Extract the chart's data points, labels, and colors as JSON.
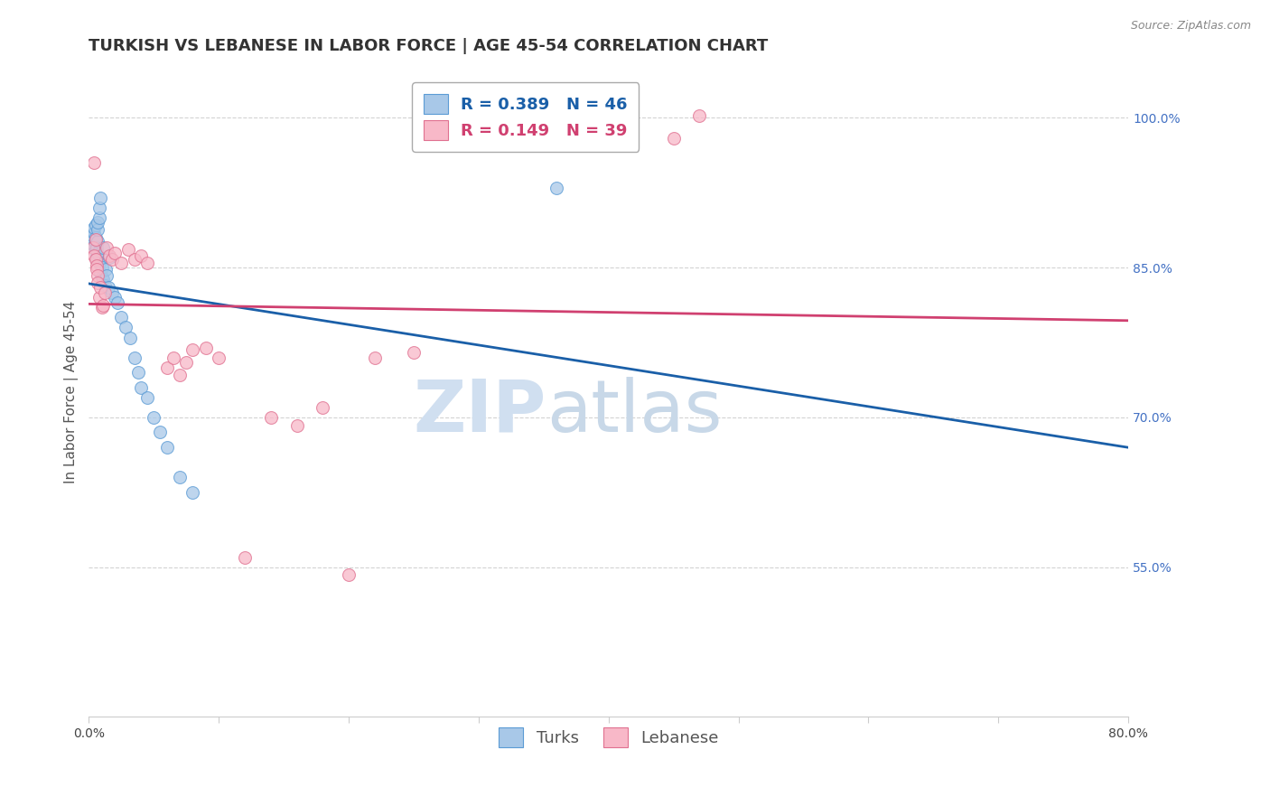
{
  "title": "TURKISH VS LEBANESE IN LABOR FORCE | AGE 45-54 CORRELATION CHART",
  "source": "Source: ZipAtlas.com",
  "ylabel": "In Labor Force | Age 45-54",
  "xlim": [
    0.0,
    0.8
  ],
  "ylim": [
    0.4,
    1.05
  ],
  "xtick_positions": [
    0.0,
    0.1,
    0.2,
    0.3,
    0.4,
    0.5,
    0.6,
    0.7,
    0.8
  ],
  "xticklabels": [
    "0.0%",
    "",
    "",
    "",
    "",
    "",
    "",
    "",
    "80.0%"
  ],
  "ytick_positions": [
    0.55,
    0.7,
    0.85,
    1.0
  ],
  "ytick_labels": [
    "55.0%",
    "70.0%",
    "85.0%",
    "100.0%"
  ],
  "ytick_color": "#4472c4",
  "grid_color": "#c8c8c8",
  "background_color": "#ffffff",
  "turks_fill_color": "#a8c8e8",
  "turks_edge_color": "#5b9bd5",
  "lebanese_fill_color": "#f8b8c8",
  "lebanese_edge_color": "#e07090",
  "legend_turks_R": "0.389",
  "legend_turks_N": "46",
  "legend_lebanese_R": "0.149",
  "legend_lebanese_N": "39",
  "watermark_zip_color": "#d0dff0",
  "watermark_atlas_color": "#c8d8e8",
  "turks_line_color": "#1a5fa8",
  "lebanese_line_color": "#d04070",
  "marker_size": 100,
  "title_fontsize": 13,
  "axis_label_fontsize": 11,
  "tick_fontsize": 10,
  "legend_fontsize": 13,
  "turks_x": [
    0.003,
    0.003,
    0.004,
    0.004,
    0.004,
    0.005,
    0.005,
    0.005,
    0.005,
    0.006,
    0.006,
    0.006,
    0.007,
    0.007,
    0.007,
    0.007,
    0.008,
    0.008,
    0.008,
    0.009,
    0.009,
    0.01,
    0.01,
    0.011,
    0.011,
    0.012,
    0.013,
    0.014,
    0.015,
    0.016,
    0.018,
    0.02,
    0.022,
    0.025,
    0.028,
    0.032,
    0.035,
    0.038,
    0.04,
    0.045,
    0.05,
    0.055,
    0.06,
    0.07,
    0.08,
    0.36
  ],
  "turks_y": [
    0.878,
    0.882,
    0.885,
    0.89,
    0.872,
    0.875,
    0.88,
    0.868,
    0.893,
    0.87,
    0.862,
    0.858,
    0.876,
    0.888,
    0.895,
    0.865,
    0.855,
    0.9,
    0.91,
    0.92,
    0.845,
    0.84,
    0.85,
    0.87,
    0.838,
    0.832,
    0.848,
    0.842,
    0.83,
    0.86,
    0.825,
    0.82,
    0.815,
    0.8,
    0.79,
    0.78,
    0.76,
    0.745,
    0.73,
    0.72,
    0.7,
    0.685,
    0.67,
    0.64,
    0.625,
    0.93
  ],
  "lebanese_x": [
    0.003,
    0.004,
    0.004,
    0.005,
    0.005,
    0.006,
    0.006,
    0.007,
    0.007,
    0.008,
    0.009,
    0.01,
    0.011,
    0.012,
    0.014,
    0.016,
    0.018,
    0.02,
    0.025,
    0.03,
    0.035,
    0.04,
    0.045,
    0.06,
    0.065,
    0.07,
    0.075,
    0.08,
    0.09,
    0.1,
    0.12,
    0.14,
    0.16,
    0.18,
    0.2,
    0.22,
    0.25,
    0.45,
    0.47
  ],
  "lebanese_y": [
    0.87,
    0.955,
    0.862,
    0.878,
    0.858,
    0.852,
    0.848,
    0.842,
    0.835,
    0.82,
    0.83,
    0.81,
    0.812,
    0.825,
    0.87,
    0.862,
    0.858,
    0.865,
    0.855,
    0.868,
    0.858,
    0.862,
    0.855,
    0.75,
    0.76,
    0.742,
    0.755,
    0.768,
    0.77,
    0.76,
    0.56,
    0.7,
    0.692,
    0.71,
    0.542,
    0.76,
    0.765,
    0.98,
    1.002
  ]
}
